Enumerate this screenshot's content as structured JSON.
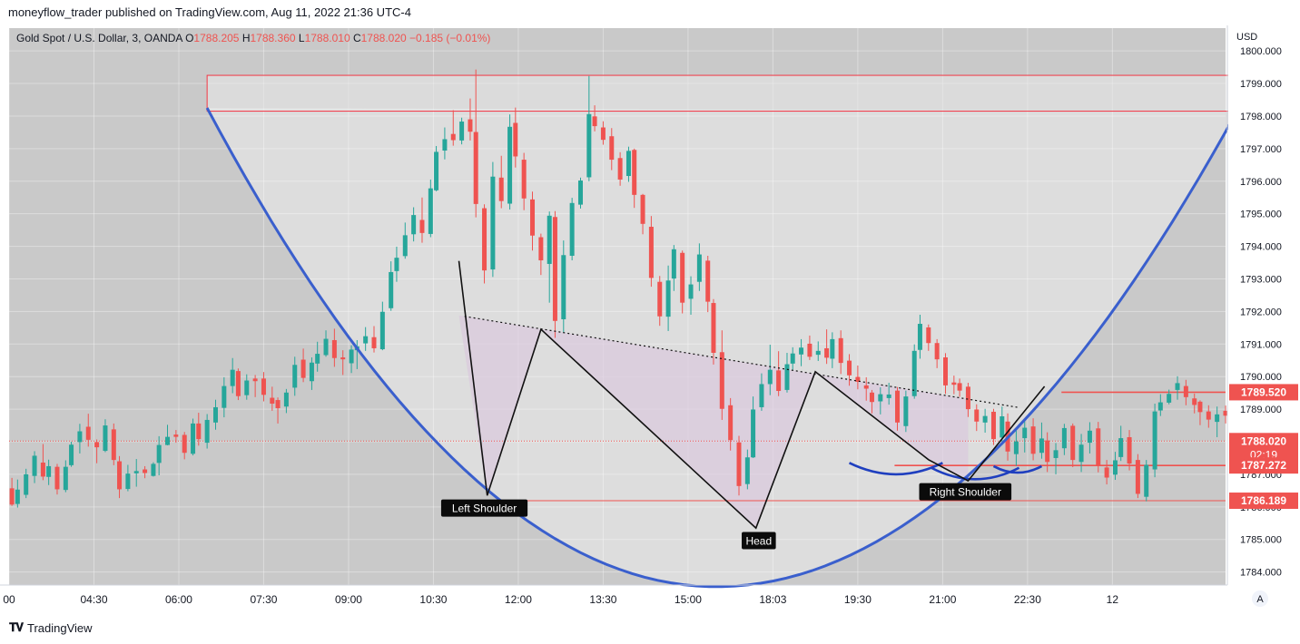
{
  "publisher": "moneyflow_trader published on TradingView.com, Aug 11, 2022 21:36 UTC-4",
  "footer": {
    "brand": "TradingView",
    "brand_icon": "tradingview-logo-icon"
  },
  "colors": {
    "up": "#26a69a",
    "down": "#ef5350",
    "bowl": "#3a5fcd",
    "zone_border": "#f23645",
    "pattern_fill": "#d9c3dc",
    "plot_bg": "#c9c9c9",
    "bowl_fill": "#dddddd"
  },
  "chart_data": {
    "type": "candlestick",
    "symbol_label": "Gold Spot / U.S. Dollar, 3, OANDA",
    "ohlc": {
      "O": "1788.205",
      "H": "1788.360",
      "L": "1788.010",
      "C": "1788.020",
      "change": "−0.185 (−0.01%)"
    },
    "ohlc_prefix": {
      "O": "O",
      "H": "H",
      "L": "L",
      "C": "C"
    },
    "currency": "USD",
    "ylim": [
      1783.6,
      1800.7
    ],
    "y_ticks": [
      "1800.000",
      "1799.000",
      "1798.000",
      "1797.000",
      "1796.000",
      "1795.000",
      "1794.000",
      "1793.000",
      "1792.000",
      "1791.000",
      "1790.000",
      "1789.000",
      "1788.000",
      "1787.000",
      "1786.000",
      "1785.000",
      "1784.000"
    ],
    "x_ticks": [
      {
        "label": "00",
        "t": 0
      },
      {
        "label": "04:30",
        "t": 30
      },
      {
        "label": "06:00",
        "t": 60
      },
      {
        "label": "07:30",
        "t": 90
      },
      {
        "label": "09:00",
        "t": 120
      },
      {
        "label": "10:30",
        "t": 150
      },
      {
        "label": "12:00",
        "t": 180
      },
      {
        "label": "13:30",
        "t": 210
      },
      {
        "label": "15:00",
        "t": 240
      },
      {
        "label": "18:03",
        "t": 270
      },
      {
        "label": "19:30",
        "t": 300
      },
      {
        "label": "21:00",
        "t": 330
      },
      {
        "label": "22:30",
        "t": 360
      },
      {
        "label": "12",
        "t": 390
      }
    ],
    "x_range": [
      0,
      430
    ],
    "price_labels": [
      {
        "value": 1789.52,
        "text": "1789.520",
        "kind": "line"
      },
      {
        "value": 1788.02,
        "text": "1788.020",
        "sub": "02:19",
        "kind": "last"
      },
      {
        "value": 1787.272,
        "text": "1787.272",
        "kind": "line"
      },
      {
        "value": 1786.189,
        "text": "1786.189",
        "kind": "line"
      }
    ],
    "resistance_zone": {
      "t_start": 70,
      "t_end": 434,
      "y_low": 1798.15,
      "y_high": 1799.25
    },
    "trend_line": [
      {
        "t": 161,
        "y": 1791.85
      },
      {
        "t": 357,
        "y": 1789.05
      }
    ],
    "pattern_path": [
      {
        "t": 159,
        "y": 1793.55
      },
      {
        "t": 169,
        "y": 1786.35
      },
      {
        "t": 188,
        "y": 1791.45
      },
      {
        "t": 264,
        "y": 1785.35
      },
      {
        "t": 285,
        "y": 1790.15
      },
      {
        "t": 325,
        "y": 1787.45
      },
      {
        "t": 339,
        "y": 1786.8
      },
      {
        "t": 366,
        "y": 1789.7
      }
    ],
    "cup_curve": {
      "t_start": 70,
      "y_start": 1798.25,
      "t_bottom": 250,
      "y_bottom": 1783.55,
      "t_end": 434,
      "y_end": 1798.15
    },
    "shoulder_arcs": [
      {
        "t_start": 297,
        "t_end": 330,
        "y_top": 1787.35,
        "y_bottom": 1787.0
      },
      {
        "t_start": 326,
        "t_end": 357,
        "y_top": 1787.2,
        "y_bottom": 1786.85
      },
      {
        "t_start": 348,
        "t_end": 365,
        "y_top": 1787.25,
        "y_bottom": 1787.05
      }
    ],
    "annotations": [
      {
        "text": "Left Shoulder",
        "t": 168,
        "y": 1785.95
      },
      {
        "text": "Head",
        "t": 265,
        "y": 1784.95
      },
      {
        "text": "Right Shoulder",
        "t": 338,
        "y": 1786.45
      }
    ],
    "candles": [
      [
        1,
        1786.57,
        1786.89,
        1786.03,
        1786.07
      ],
      [
        3,
        1786.09,
        1786.84,
        1785.98,
        1786.53
      ],
      [
        6,
        1786.37,
        1787.17,
        1786.27,
        1787.0
      ],
      [
        9,
        1786.95,
        1787.71,
        1786.73,
        1787.57
      ],
      [
        12,
        1787.36,
        1787.93,
        1786.82,
        1786.93
      ],
      [
        14,
        1786.92,
        1787.45,
        1786.67,
        1787.25
      ],
      [
        17,
        1787.23,
        1787.32,
        1786.38,
        1786.54
      ],
      [
        20,
        1786.52,
        1787.43,
        1786.45,
        1787.23
      ],
      [
        22,
        1787.28,
        1788.0,
        1787.23,
        1787.91
      ],
      [
        25,
        1787.99,
        1788.55,
        1787.64,
        1788.32
      ],
      [
        28,
        1788.46,
        1788.86,
        1787.85,
        1788.06
      ],
      [
        31,
        1787.99,
        1788.07,
        1787.34,
        1787.83
      ],
      [
        34,
        1787.72,
        1788.69,
        1787.68,
        1788.5
      ],
      [
        37,
        1788.38,
        1788.56,
        1787.28,
        1787.44
      ],
      [
        39,
        1787.4,
        1787.56,
        1786.27,
        1786.54
      ],
      [
        42,
        1786.55,
        1787.29,
        1786.48,
        1787.02
      ],
      [
        45,
        1787.03,
        1787.47,
        1786.62,
        1787.1
      ],
      [
        48,
        1787.15,
        1787.25,
        1786.88,
        1787.04
      ],
      [
        51,
        1786.95,
        1787.37,
        1786.93,
        1787.32
      ],
      [
        53,
        1787.35,
        1788.17,
        1786.97,
        1787.9
      ],
      [
        56,
        1787.9,
        1788.52,
        1787.89,
        1788.15
      ],
      [
        59,
        1788.22,
        1788.36,
        1787.97,
        1788.15
      ],
      [
        62,
        1788.21,
        1788.3,
        1787.46,
        1787.66
      ],
      [
        65,
        1787.63,
        1788.71,
        1787.58,
        1788.56
      ],
      [
        67,
        1788.56,
        1788.89,
        1787.88,
        1788.08
      ],
      [
        70,
        1787.97,
        1788.85,
        1787.79,
        1788.67
      ],
      [
        73,
        1788.59,
        1789.29,
        1788.37,
        1789.06
      ],
      [
        76,
        1789.04,
        1789.98,
        1788.75,
        1789.71
      ],
      [
        79,
        1789.71,
        1790.57,
        1789.49,
        1790.21
      ],
      [
        81,
        1790.17,
        1790.25,
        1789.28,
        1789.4
      ],
      [
        84,
        1789.43,
        1790.07,
        1789.29,
        1789.88
      ],
      [
        87,
        1789.94,
        1790.05,
        1789.37,
        1789.86
      ],
      [
        90,
        1789.94,
        1790.14,
        1789.24,
        1789.44
      ],
      [
        93,
        1789.35,
        1789.69,
        1788.95,
        1789.17
      ],
      [
        95,
        1789.28,
        1789.36,
        1788.56,
        1789.03
      ],
      [
        98,
        1789.08,
        1789.62,
        1788.88,
        1789.51
      ],
      [
        101,
        1789.66,
        1790.61,
        1789.41,
        1790.36
      ],
      [
        104,
        1790.52,
        1790.86,
        1789.83,
        1789.96
      ],
      [
        107,
        1789.86,
        1790.59,
        1789.59,
        1790.43
      ],
      [
        109,
        1790.4,
        1791.07,
        1790.15,
        1790.7
      ],
      [
        112,
        1790.66,
        1791.42,
        1790.61,
        1791.16
      ],
      [
        115,
        1791.12,
        1791.47,
        1790.3,
        1790.57
      ],
      [
        118,
        1790.59,
        1790.81,
        1790.05,
        1790.53
      ],
      [
        121,
        1790.41,
        1790.96,
        1790.11,
        1790.83
      ],
      [
        123,
        1790.81,
        1791.12,
        1790.23,
        1790.93
      ],
      [
        126,
        1791.02,
        1791.52,
        1790.79,
        1791.24
      ],
      [
        129,
        1791.21,
        1791.55,
        1790.74,
        1790.87
      ],
      [
        132,
        1790.84,
        1792.3,
        1790.81,
        1791.99
      ],
      [
        135,
        1792.1,
        1793.54,
        1792.02,
        1793.21
      ],
      [
        137,
        1793.24,
        1793.99,
        1792.91,
        1793.65
      ],
      [
        140,
        1793.7,
        1794.73,
        1793.62,
        1794.34
      ],
      [
        143,
        1794.37,
        1795.2,
        1794.15,
        1794.96
      ],
      [
        146,
        1794.81,
        1795.5,
        1794.11,
        1794.41
      ],
      [
        149,
        1794.38,
        1796.05,
        1794.28,
        1795.78
      ],
      [
        151,
        1795.72,
        1797.08,
        1795.69,
        1796.9
      ],
      [
        154,
        1796.94,
        1797.65,
        1796.67,
        1797.29
      ],
      [
        157,
        1797.45,
        1798.18,
        1797.09,
        1797.26
      ],
      [
        160,
        1797.25,
        1797.95,
        1797.13,
        1797.83
      ],
      [
        163,
        1797.9,
        1798.54,
        1797.25,
        1797.52
      ],
      [
        165,
        1797.51,
        1799.43,
        1794.89,
        1795.3
      ],
      [
        168,
        1795.17,
        1795.29,
        1792.86,
        1793.26
      ],
      [
        171,
        1793.29,
        1796.59,
        1793.06,
        1796.14
      ],
      [
        174,
        1796.11,
        1796.78,
        1795.17,
        1795.39
      ],
      [
        177,
        1795.31,
        1798.05,
        1795.13,
        1797.67
      ],
      [
        179,
        1797.79,
        1798.26,
        1796.42,
        1796.76
      ],
      [
        182,
        1796.66,
        1796.87,
        1795.11,
        1795.47
      ],
      [
        185,
        1795.44,
        1795.68,
        1793.87,
        1794.33
      ],
      [
        188,
        1794.28,
        1794.39,
        1793.12,
        1793.57
      ],
      [
        191,
        1793.46,
        1795.07,
        1792.27,
        1794.94
      ],
      [
        193,
        1794.9,
        1795.08,
        1791.19,
        1791.71
      ],
      [
        196,
        1791.76,
        1794.18,
        1791.35,
        1793.73
      ],
      [
        199,
        1793.71,
        1795.49,
        1793.57,
        1795.33
      ],
      [
        202,
        1795.28,
        1796.11,
        1795.16,
        1796.02
      ],
      [
        205,
        1796.12,
        1799.23,
        1796.0,
        1798.06
      ],
      [
        207,
        1797.99,
        1798.33,
        1797.53,
        1797.69
      ],
      [
        210,
        1797.65,
        1797.84,
        1797.12,
        1797.27
      ],
      [
        213,
        1797.38,
        1797.63,
        1796.34,
        1796.66
      ],
      [
        216,
        1796.71,
        1796.89,
        1795.86,
        1796.05
      ],
      [
        219,
        1796.16,
        1797.06,
        1795.98,
        1796.93
      ],
      [
        221,
        1796.96,
        1797.0,
        1795.18,
        1795.58
      ],
      [
        224,
        1795.58,
        1795.61,
        1794.37,
        1794.69
      ],
      [
        227,
        1794.6,
        1794.93,
        1792.76,
        1793.03
      ],
      [
        230,
        1792.91,
        1793.09,
        1791.56,
        1791.85
      ],
      [
        233,
        1791.84,
        1793.41,
        1791.4,
        1792.95
      ],
      [
        235,
        1793.01,
        1794.04,
        1792.63,
        1793.91
      ],
      [
        238,
        1793.8,
        1793.87,
        1791.94,
        1792.27
      ],
      [
        241,
        1792.39,
        1793.08,
        1791.9,
        1792.83
      ],
      [
        244,
        1792.91,
        1794.09,
        1792.63,
        1793.75
      ],
      [
        247,
        1793.56,
        1793.71,
        1791.98,
        1792.3
      ],
      [
        249,
        1792.26,
        1792.38,
        1790.37,
        1790.73
      ],
      [
        252,
        1790.75,
        1791.42,
        1788.67,
        1789.01
      ],
      [
        255,
        1789.12,
        1789.34,
        1787.73,
        1788.05
      ],
      [
        258,
        1787.98,
        1788.18,
        1786.35,
        1786.64
      ],
      [
        261,
        1786.7,
        1787.76,
        1786.54,
        1787.52
      ],
      [
        263,
        1787.52,
        1789.39,
        1787.5,
        1788.99
      ],
      [
        266,
        1789.06,
        1790.1,
        1788.95,
        1789.77
      ],
      [
        269,
        1789.77,
        1790.98,
        1789.43,
        1790.21
      ],
      [
        272,
        1790.19,
        1790.78,
        1789.4,
        1789.56
      ],
      [
        275,
        1789.59,
        1790.73,
        1789.51,
        1790.38
      ],
      [
        277,
        1790.4,
        1790.9,
        1790.21,
        1790.71
      ],
      [
        280,
        1790.68,
        1791.15,
        1790.32,
        1790.89
      ],
      [
        283,
        1791.01,
        1791.26,
        1790.51,
        1790.61
      ],
      [
        286,
        1790.67,
        1791.08,
        1790.48,
        1790.79
      ],
      [
        289,
        1790.87,
        1791.45,
        1790.39,
        1790.58
      ],
      [
        291,
        1790.55,
        1791.36,
        1790.26,
        1791.15
      ],
      [
        294,
        1791.18,
        1791.42,
        1790.08,
        1790.42
      ],
      [
        297,
        1790.49,
        1790.69,
        1789.72,
        1790.04
      ],
      [
        300,
        1789.99,
        1790.34,
        1789.61,
        1789.84
      ],
      [
        303,
        1789.73,
        1789.98,
        1789.26,
        1789.63
      ],
      [
        305,
        1789.51,
        1789.59,
        1788.87,
        1789.22
      ],
      [
        308,
        1789.24,
        1789.67,
        1788.84,
        1789.46
      ],
      [
        311,
        1789.34,
        1789.81,
        1789.14,
        1789.45
      ],
      [
        314,
        1789.57,
        1789.68,
        1788.34,
        1788.59
      ],
      [
        317,
        1788.48,
        1789.57,
        1788.3,
        1789.39
      ],
      [
        320,
        1789.4,
        1790.99,
        1789.32,
        1790.79
      ],
      [
        322,
        1790.82,
        1791.9,
        1790.55,
        1791.62
      ],
      [
        325,
        1791.51,
        1791.6,
        1790.79,
        1791.03
      ],
      [
        328,
        1791.03,
        1791.15,
        1790.26,
        1790.53
      ],
      [
        331,
        1790.59,
        1790.72,
        1789.47,
        1789.73
      ],
      [
        334,
        1789.82,
        1790.03,
        1789.46,
        1789.75
      ],
      [
        336,
        1789.8,
        1789.94,
        1789.38,
        1789.57
      ],
      [
        339,
        1789.69,
        1789.81,
        1788.76,
        1789.0
      ],
      [
        342,
        1788.99,
        1789.15,
        1788.33,
        1788.62
      ],
      [
        345,
        1788.59,
        1789.01,
        1788.28,
        1788.79
      ],
      [
        348,
        1788.92,
        1789.01,
        1787.9,
        1788.08
      ],
      [
        351,
        1788.13,
        1789.08,
        1787.9,
        1788.78
      ],
      [
        353,
        1788.62,
        1788.87,
        1787.42,
        1787.7
      ],
      [
        356,
        1787.62,
        1788.35,
        1787.26,
        1788.01
      ],
      [
        359,
        1788.11,
        1788.67,
        1787.67,
        1788.43
      ],
      [
        362,
        1788.47,
        1788.72,
        1787.43,
        1787.63
      ],
      [
        365,
        1787.66,
        1788.59,
        1787.48,
        1788.1
      ],
      [
        367,
        1788.04,
        1788.29,
        1787.07,
        1787.38
      ],
      [
        370,
        1787.5,
        1787.96,
        1787.0,
        1787.74
      ],
      [
        373,
        1787.8,
        1788.55,
        1787.59,
        1788.42
      ],
      [
        376,
        1788.49,
        1788.56,
        1787.22,
        1787.44
      ],
      [
        379,
        1787.38,
        1788.24,
        1787.07,
        1787.91
      ],
      [
        382,
        1787.97,
        1788.6,
        1787.64,
        1788.34
      ],
      [
        385,
        1788.41,
        1788.61,
        1787.06,
        1787.29
      ],
      [
        388,
        1787.21,
        1787.44,
        1786.69,
        1786.9
      ],
      [
        391,
        1786.99,
        1787.69,
        1786.83,
        1787.43
      ],
      [
        393,
        1787.53,
        1788.49,
        1787.41,
        1788.11
      ],
      [
        396,
        1788.14,
        1788.36,
        1787.12,
        1787.33
      ],
      [
        399,
        1787.44,
        1787.62,
        1786.27,
        1786.4
      ],
      [
        402,
        1786.31,
        1787.44,
        1786.17,
        1787.29
      ],
      [
        405,
        1787.15,
        1789.17,
        1786.91,
        1788.93
      ],
      [
        407,
        1788.96,
        1789.46,
        1788.79,
        1789.21
      ],
      [
        410,
        1789.2,
        1789.6,
        1789.15,
        1789.47
      ],
      [
        413,
        1789.59,
        1790.01,
        1789.29,
        1789.8
      ],
      [
        416,
        1789.71,
        1789.9,
        1789.12,
        1789.37
      ],
      [
        419,
        1789.33,
        1789.48,
        1788.87,
        1789.13
      ],
      [
        421,
        1789.23,
        1789.27,
        1788.51,
        1788.91
      ],
      [
        424,
        1788.93,
        1789.12,
        1788.43,
        1788.68
      ],
      [
        427,
        1788.61,
        1789.08,
        1788.14,
        1788.84
      ],
      [
        430,
        1788.95,
        1789.11,
        1788.56,
        1788.8
      ]
    ]
  }
}
